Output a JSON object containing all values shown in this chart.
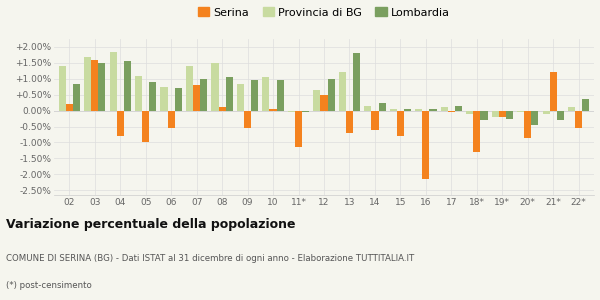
{
  "years": [
    "02",
    "03",
    "04",
    "05",
    "06",
    "07",
    "08",
    "09",
    "10",
    "11*",
    "12",
    "13",
    "14",
    "15",
    "16",
    "17",
    "18*",
    "19*",
    "20*",
    "21*",
    "22*"
  ],
  "serina": [
    0.2,
    1.6,
    -0.8,
    -1.0,
    -0.55,
    0.8,
    0.1,
    -0.55,
    0.05,
    -1.15,
    0.5,
    -0.7,
    -0.6,
    -0.8,
    -2.15,
    -0.05,
    -1.3,
    -0.2,
    -0.85,
    1.2,
    -0.55
  ],
  "provincia_bg": [
    1.4,
    1.7,
    1.85,
    1.1,
    0.75,
    1.4,
    1.5,
    0.85,
    1.05,
    -0.05,
    0.65,
    1.2,
    0.15,
    0.05,
    0.05,
    0.1,
    -0.1,
    -0.2,
    -0.05,
    -0.1,
    0.1
  ],
  "lombardia": [
    0.85,
    1.5,
    1.55,
    0.9,
    0.7,
    1.0,
    1.05,
    0.95,
    0.95,
    -0.05,
    1.0,
    1.8,
    0.25,
    0.05,
    0.05,
    0.15,
    -0.3,
    -0.25,
    -0.45,
    -0.3,
    0.35
  ],
  "color_serina": "#f4821e",
  "color_provincia": "#c8dba0",
  "color_lombardia": "#7a9f5f",
  "ylim": [
    -2.65,
    2.25
  ],
  "yticks": [
    -2.5,
    -2.0,
    -1.5,
    -1.0,
    -0.5,
    0.0,
    0.5,
    1.0,
    1.5,
    2.0
  ],
  "ytick_labels": [
    "-2.50%",
    "-2.00%",
    "-1.50%",
    "-1.00%",
    "-0.50%",
    "0.00%",
    "+0.50%",
    "+1.00%",
    "+1.50%",
    "+2.00%"
  ],
  "legend_labels": [
    "Serina",
    "Provincia di BG",
    "Lombardia"
  ],
  "title": "Variazione percentuale della popolazione",
  "subtitle": "COMUNE DI SERINA (BG) - Dati ISTAT al 31 dicembre di ogni anno - Elaborazione TUTTITALIA.IT",
  "footnote": "(*) post-censimento",
  "bg_color": "#f5f5ee",
  "bar_width": 0.28
}
